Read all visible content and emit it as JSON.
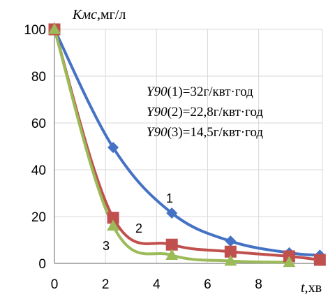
{
  "chart_data": {
    "type": "line",
    "ylabel_var": "Kмс,",
    "ylabel_unit": "мг/л",
    "xlabel_var": "t,",
    "xlabel_unit": "хв",
    "xlim": [
      0,
      10.5
    ],
    "ylim": [
      0,
      100
    ],
    "xticks": [
      "0",
      "2",
      "4",
      "6",
      "8"
    ],
    "xtick_values": [
      0,
      2,
      4,
      6,
      8
    ],
    "yticks": [
      "0",
      "20",
      "40",
      "60",
      "80",
      "100"
    ],
    "ytick_values": [
      0,
      20,
      40,
      60,
      80,
      100
    ],
    "grid": true,
    "series": [
      {
        "name": "1",
        "color": "#4472C4",
        "marker": "diamond",
        "x": [
          0,
          2.3,
          4.6,
          6.9,
          9.2,
          10.4
        ],
        "y": [
          100,
          49.5,
          21.5,
          9.5,
          4.5,
          3.5
        ]
      },
      {
        "name": "2",
        "color": "#C0504D",
        "marker": "square",
        "x": [
          0,
          2.3,
          4.6,
          6.9,
          9.2,
          10.4
        ],
        "y": [
          100,
          19.5,
          8,
          5,
          3,
          1.5
        ]
      },
      {
        "name": "3",
        "color": "#9BBB59",
        "marker": "triangle",
        "x": [
          0,
          2.3,
          4.6,
          6.9,
          9.2
        ],
        "y": [
          100,
          16,
          3.5,
          1,
          0.5
        ]
      }
    ],
    "annotations": [
      {
        "prefix": "Y90",
        "text": "(1)=32г/квт·год"
      },
      {
        "prefix": "Y90",
        "text": "(2)=22,8г/квт·год"
      },
      {
        "prefix": "Y90",
        "text": "(3)=14,5г/квт·год"
      }
    ]
  }
}
